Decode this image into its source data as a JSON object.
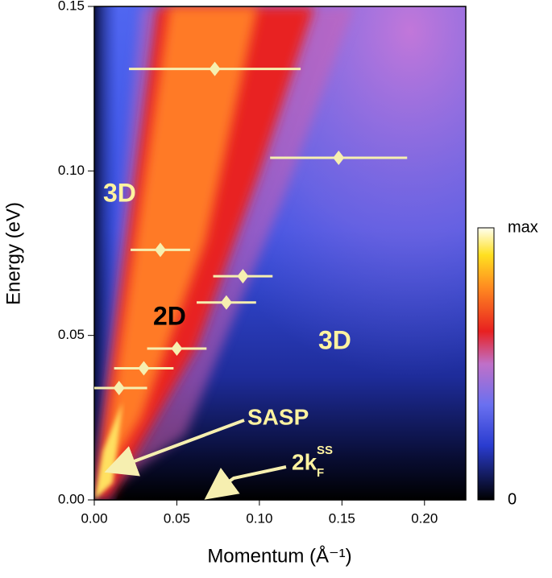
{
  "chart_data": {
    "type": "scatter",
    "xlabel": "Momentum (Å⁻¹)",
    "ylabel": "Energy (eV)",
    "xlim": [
      0,
      0.225
    ],
    "ylim": [
      0,
      0.15
    ],
    "xticks": [
      {
        "value": 0,
        "label": "0.00"
      },
      {
        "value": 0.05,
        "label": "0.05"
      },
      {
        "value": 0.1,
        "label": "0.10"
      },
      {
        "value": 0.15,
        "label": "0.15"
      },
      {
        "value": 0.2,
        "label": "0.20"
      }
    ],
    "yticks": [
      {
        "value": 0,
        "label": "0.00"
      },
      {
        "value": 0.05,
        "label": "0.05"
      },
      {
        "value": 0.1,
        "label": "0.10"
      },
      {
        "value": 0.15,
        "label": "0.15"
      }
    ],
    "series": [
      {
        "color": "#f6efb0",
        "x": [
          0.073,
          0.148,
          0.04,
          0.09,
          0.08,
          0.05,
          0.03,
          0.015
        ],
        "values": [
          0.131,
          0.104,
          0.076,
          0.068,
          0.06,
          0.046,
          0.04,
          0.034
        ],
        "xerr": [
          0.052,
          0.0415,
          0.018,
          0.018,
          0.018,
          0.018,
          0.018,
          0.017
        ]
      }
    ],
    "colorbar": {
      "max_label": "max",
      "min_label": "0"
    },
    "annotations": {
      "region_3d_left": "3D",
      "region_2d": "2D",
      "region_3d_right": "3D",
      "sasp": "SASP",
      "kf_main": "2k",
      "kf_sub": "F",
      "kf_sup": "SS"
    }
  }
}
